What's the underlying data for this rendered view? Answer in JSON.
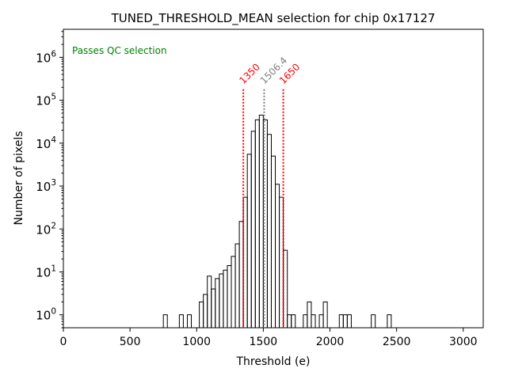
{
  "chart_data": {
    "type": "histogram",
    "title": "TUNED_THRESHOLD_MEAN selection for chip 0x17127",
    "xlabel": "Threshold (e)",
    "ylabel": "Number of pixels",
    "xlim": [
      0,
      3150
    ],
    "ylim": [
      0.5,
      4500000
    ],
    "yscale": "log",
    "grid": false,
    "x_ticks": [
      0,
      500,
      1000,
      1500,
      2000,
      2500,
      3000
    ],
    "x_tick_labels": [
      "0",
      "500",
      "1000",
      "1500",
      "2000",
      "2500",
      "3000"
    ],
    "y_ticks": [
      1,
      10,
      100,
      1000,
      10000,
      100000,
      1000000
    ],
    "y_tick_bases": [
      "10",
      "10",
      "10",
      "10",
      "10",
      "10",
      "10"
    ],
    "y_tick_exps": [
      "0",
      "1",
      "2",
      "3",
      "4",
      "5",
      "6"
    ],
    "bin_width": 30,
    "bins": [
      [
        750,
        1
      ],
      [
        870,
        1
      ],
      [
        930,
        1
      ],
      [
        1020,
        2
      ],
      [
        1050,
        3
      ],
      [
        1080,
        8
      ],
      [
        1110,
        4
      ],
      [
        1140,
        7
      ],
      [
        1170,
        9
      ],
      [
        1200,
        11
      ],
      [
        1230,
        14
      ],
      [
        1260,
        23
      ],
      [
        1290,
        45
      ],
      [
        1320,
        150
      ],
      [
        1350,
        550
      ],
      [
        1380,
        5500
      ],
      [
        1410,
        19000
      ],
      [
        1440,
        35000
      ],
      [
        1470,
        45000
      ],
      [
        1500,
        35000
      ],
      [
        1530,
        16000
      ],
      [
        1560,
        5000
      ],
      [
        1590,
        1100
      ],
      [
        1620,
        550
      ],
      [
        1650,
        32
      ],
      [
        1680,
        1
      ],
      [
        1710,
        1
      ],
      [
        1800,
        1
      ],
      [
        1830,
        2
      ],
      [
        1860,
        1
      ],
      [
        1920,
        1
      ],
      [
        1950,
        2
      ],
      [
        2070,
        1
      ],
      [
        2100,
        1
      ],
      [
        2130,
        1
      ],
      [
        2310,
        1
      ],
      [
        2430,
        1
      ]
    ],
    "annotation": {
      "text": "Passes QC selection",
      "color": "#008000",
      "position": "top-left"
    },
    "vertical_lines": [
      {
        "x": 1350,
        "label": "1350",
        "color": "#ff0000"
      },
      {
        "x": 1506.4,
        "label": "1506.4",
        "color": "#808080"
      },
      {
        "x": 1650,
        "label": "1650",
        "color": "#ff0000"
      }
    ],
    "line_top_value": 180000
  }
}
